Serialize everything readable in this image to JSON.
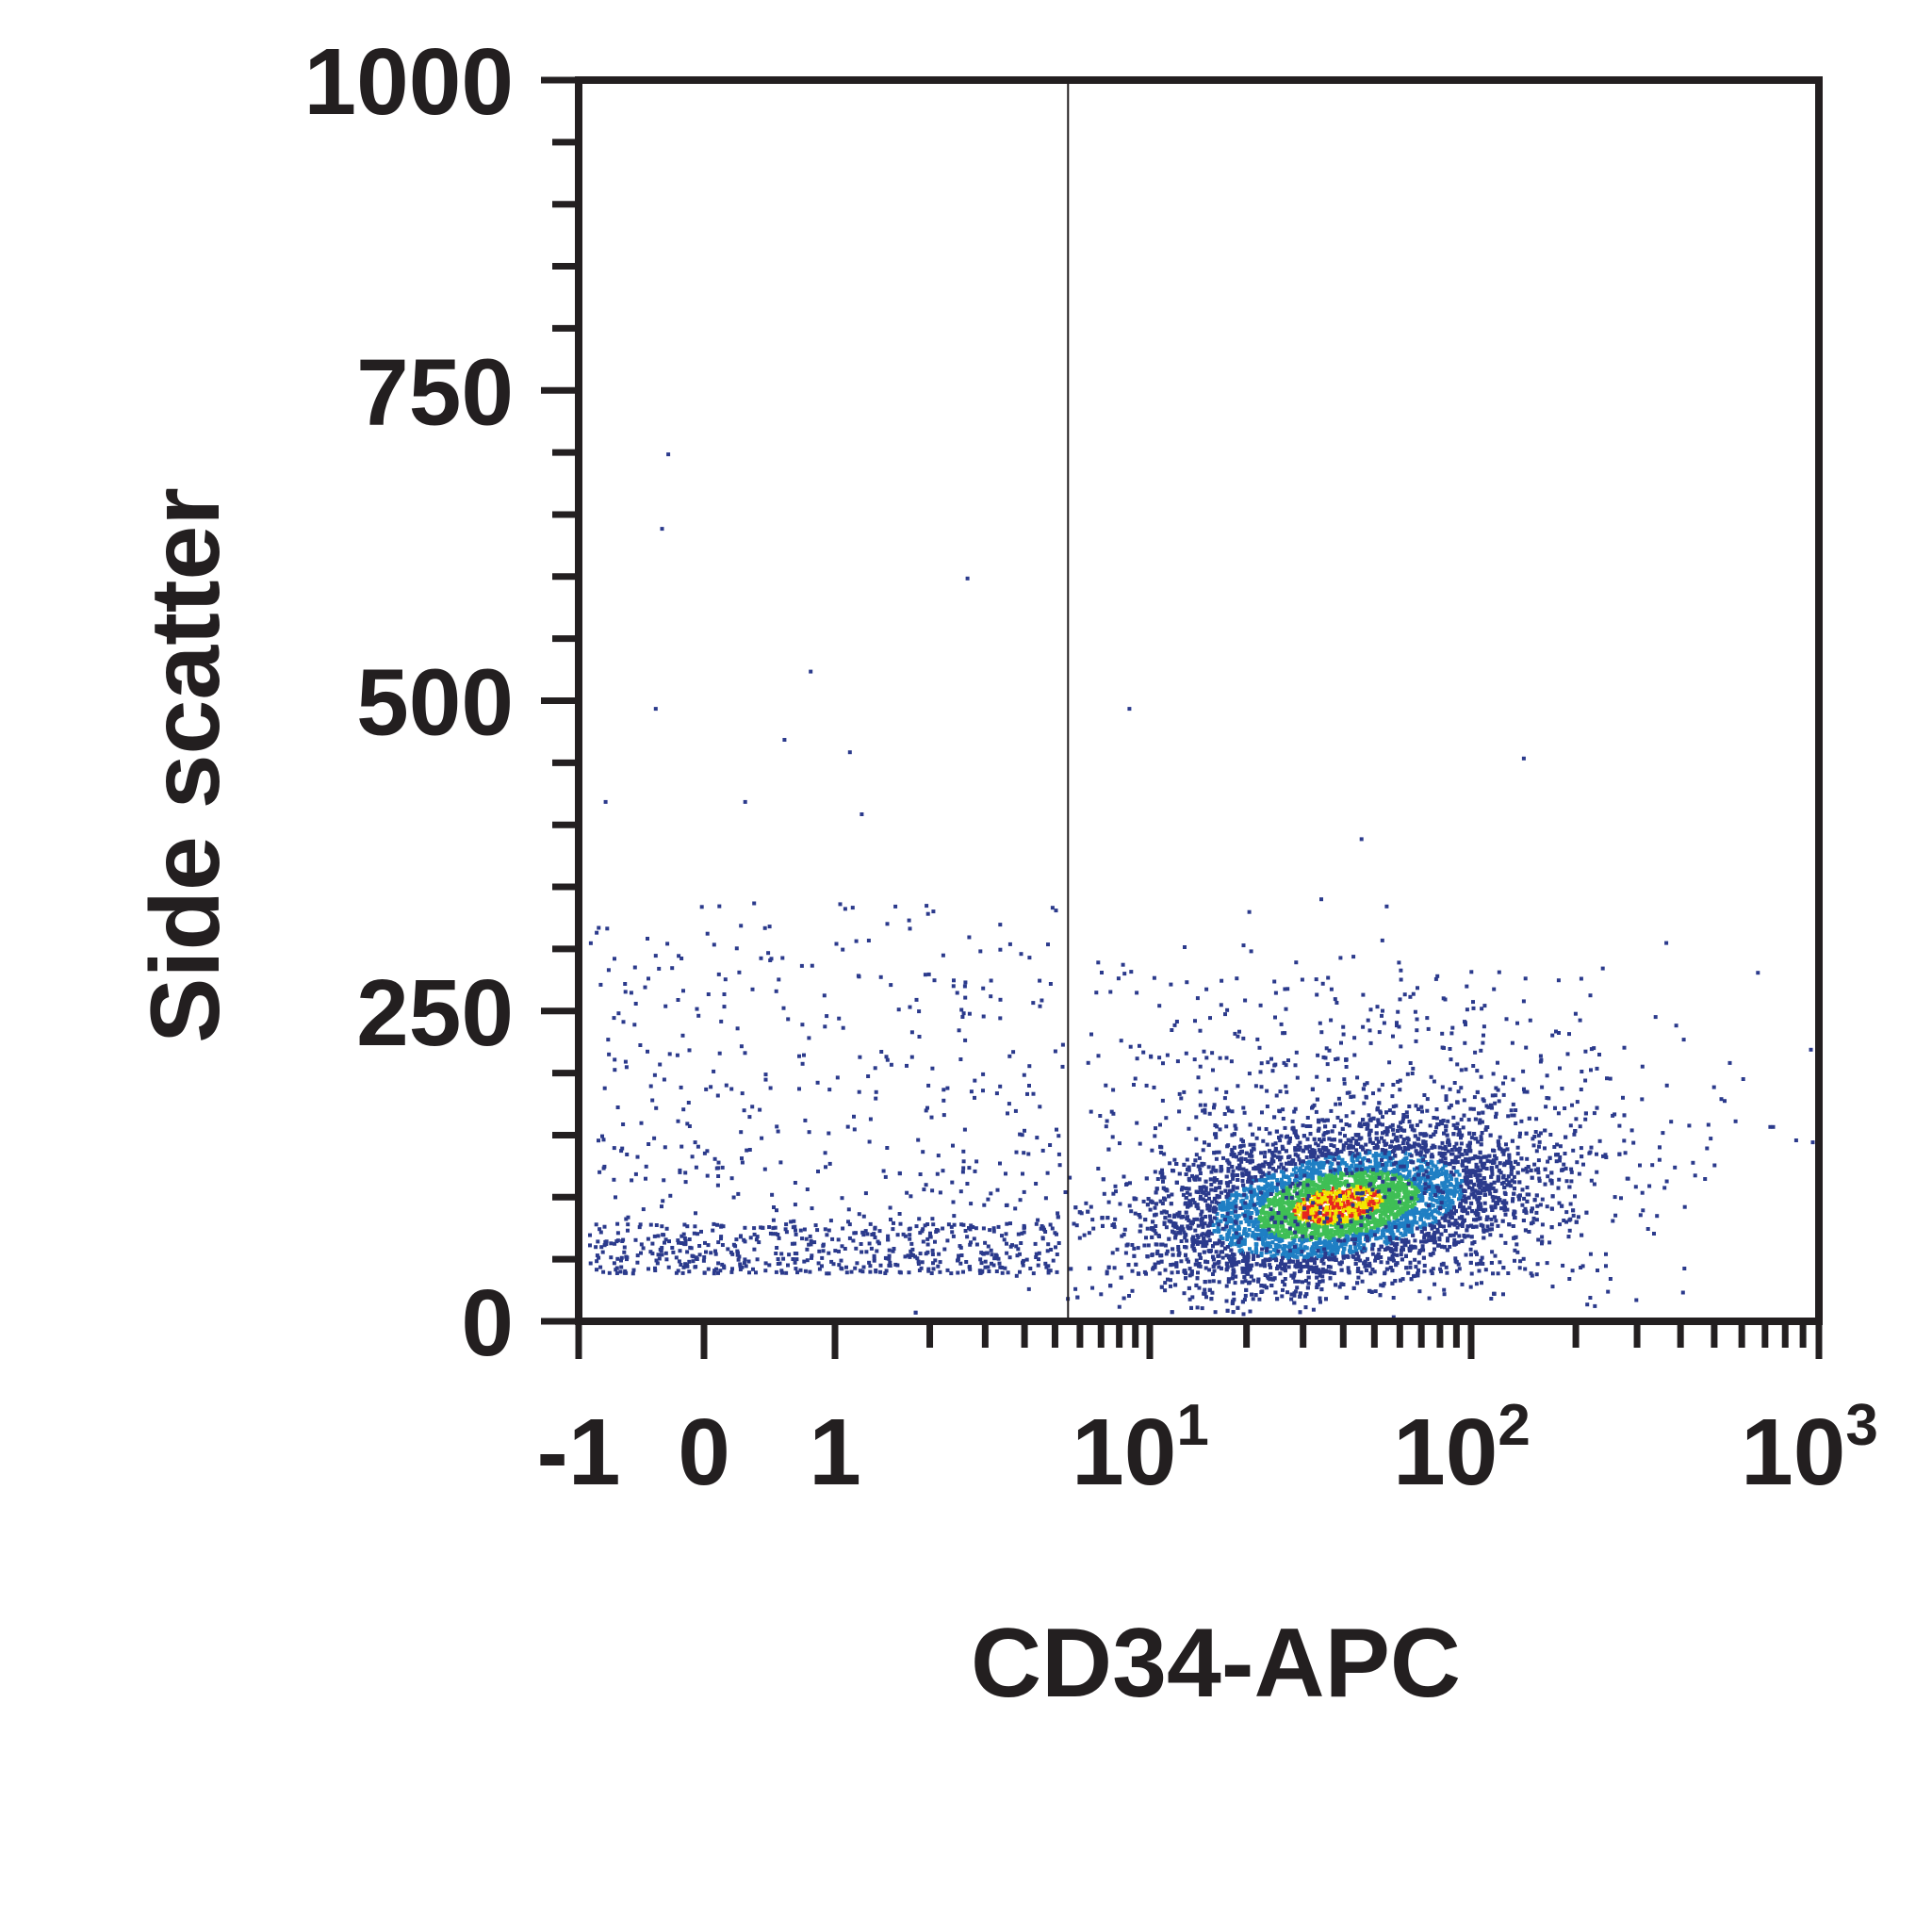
{
  "chart_data": {
    "type": "scatter",
    "subtype": "flow-cytometry density dot plot",
    "xlabel": "CD34-APC",
    "ylabel": "Side scatter",
    "x_scale": "biexponential (linear near zero, log above 10)",
    "xlim": [
      -1,
      1000
    ],
    "ylim": [
      0,
      1000
    ],
    "x_ticks": [
      {
        "value": -1,
        "label": "-1",
        "sup": ""
      },
      {
        "value": 0,
        "label": "0",
        "sup": ""
      },
      {
        "value": 1,
        "label": "1",
        "sup": ""
      },
      {
        "value": 10,
        "label": "10",
        "sup": "1"
      },
      {
        "value": 100,
        "label": "10",
        "sup": "2"
      },
      {
        "value": 1000,
        "label": "10",
        "sup": "3"
      }
    ],
    "y_ticks": [
      {
        "value": 0,
        "label": "0"
      },
      {
        "value": 250,
        "label": "250"
      },
      {
        "value": 500,
        "label": "500"
      },
      {
        "value": 750,
        "label": "750"
      },
      {
        "value": 1000,
        "label": "1000"
      }
    ],
    "gate": {
      "type": "vertical line",
      "x": 5.5
    },
    "populations": [
      {
        "description": "dense CD34+ cluster",
        "center_x": 38,
        "center_y": 95,
        "density": "high"
      },
      {
        "description": "CD34- scattered events",
        "x_range": [
          -1,
          5
        ],
        "y_range": [
          30,
          350
        ],
        "density": "low"
      },
      {
        "description": "CD34+ sparse events",
        "x_range": [
          6,
          400
        ],
        "y_range": [
          30,
          500
        ],
        "density": "low"
      }
    ],
    "colors": {
      "axis": "#231f20",
      "low_density": "#2b3a8c",
      "mid_density": "#1f7fc4",
      "high_density": "#3fbf55",
      "peak_density": "#f2e600",
      "max_density": "#e8261f"
    },
    "grid": false,
    "legend": "none"
  }
}
